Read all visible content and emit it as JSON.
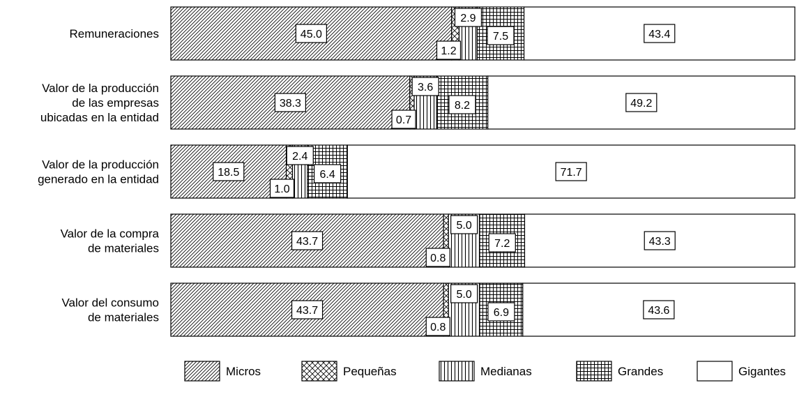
{
  "chart_data": {
    "type": "bar",
    "orientation": "horizontal",
    "stacked": true,
    "categories": [
      [
        "Remuneraciones"
      ],
      [
        "Valor de la producción",
        "de las empresas",
        "ubicadas en la entidad"
      ],
      [
        "Valor de la producción",
        "generado en la entidad"
      ],
      [
        "Valor de la compra",
        "de materiales"
      ],
      [
        "Valor del consumo",
        "de materiales"
      ]
    ],
    "series": [
      {
        "name": "Micros",
        "pattern": "diagonal",
        "values": [
          45.0,
          38.3,
          18.5,
          43.7,
          43.7
        ]
      },
      {
        "name": "Pequeñas",
        "pattern": "crosshatch",
        "values": [
          1.2,
          0.7,
          1.0,
          0.8,
          0.8
        ]
      },
      {
        "name": "Medianas",
        "pattern": "vertical",
        "values": [
          2.9,
          3.6,
          2.4,
          5.0,
          5.0
        ]
      },
      {
        "name": "Grandes",
        "pattern": "grid",
        "values": [
          7.5,
          8.2,
          6.4,
          7.2,
          6.9
        ]
      },
      {
        "name": "Gigantes",
        "pattern": "none",
        "values": [
          43.4,
          49.2,
          71.7,
          43.3,
          43.6
        ]
      }
    ],
    "xlim": [
      0,
      100
    ],
    "grid": false,
    "legend_position": "bottom",
    "data_labels": true,
    "title": "",
    "xlabel": "",
    "ylabel": ""
  }
}
